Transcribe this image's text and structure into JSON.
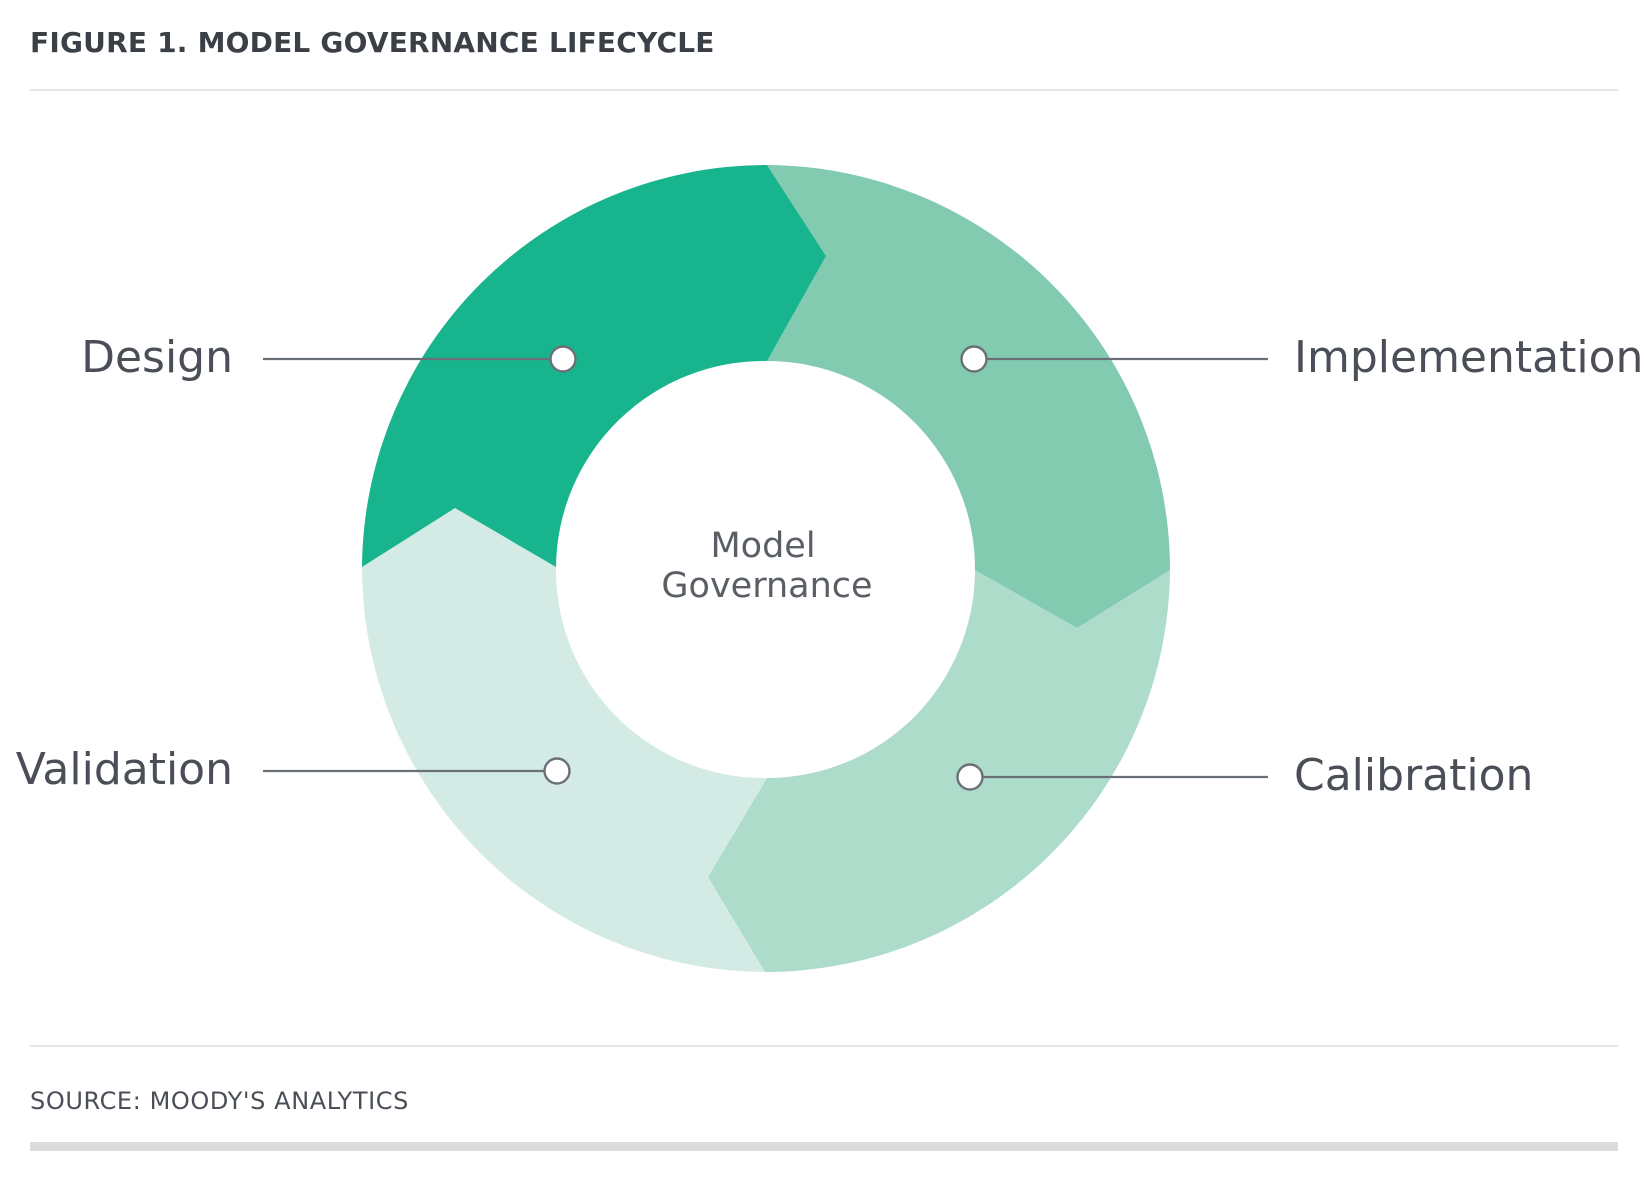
{
  "figure": {
    "title": "FIGURE 1. MODEL GOVERNANCE LIFECYCLE",
    "source": "SOURCE: MOODY'S ANALYTICS"
  },
  "center": {
    "line1": "Model",
    "line2": "Governance"
  },
  "stages": [
    {
      "id": "design",
      "label": "Design",
      "color": "#18b48d"
    },
    {
      "id": "implementation",
      "label": "Implementation",
      "color": "#82cbb1"
    },
    {
      "id": "calibration",
      "label": "Calibration",
      "color": "#addccb"
    },
    {
      "id": "validation",
      "label": "Validation",
      "color": "#d3ebe4"
    }
  ],
  "colors": {
    "connector": "#6b7078",
    "marker_fill": "#ffffff",
    "marker_stroke": "#6b7078"
  }
}
